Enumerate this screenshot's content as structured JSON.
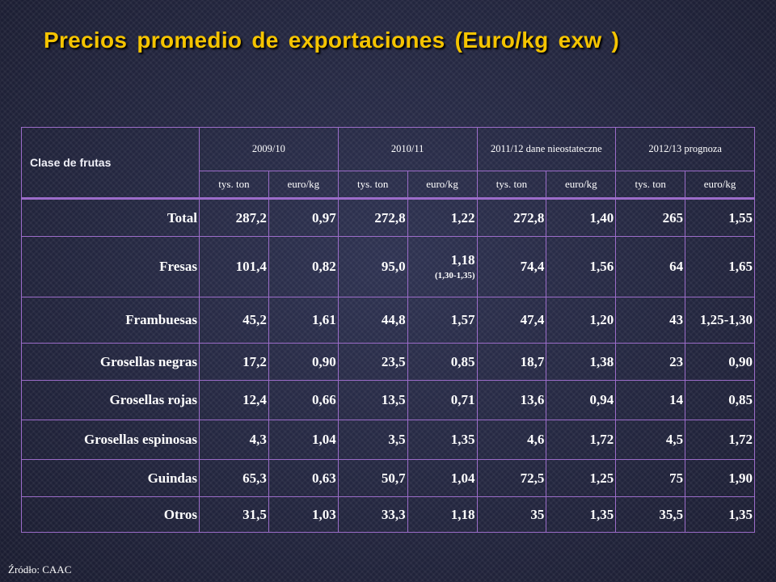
{
  "title": "Precios promedio de exportaciones (Euro/kg exw )",
  "header": {
    "class_label": "Clase de frutas",
    "years": [
      "2009/10",
      "2010/11",
      "2011/12 dane nieostateczne",
      "2012/13 prognoza"
    ],
    "sub": [
      "tys. ton",
      "euro/kg",
      "tys. ton",
      "euro/kg",
      "tys. ton",
      "euro/kg",
      "tys. ton",
      "euro/kg"
    ]
  },
  "rows": [
    {
      "label": "Total",
      "color": "#f5e400",
      "v": [
        "287,2",
        "0,97",
        "272,8",
        "1,22",
        "272,8",
        "1,40",
        "265",
        "1,55"
      ]
    },
    {
      "label": "Fresas",
      "color": "#ff2020",
      "v": [
        "101,4",
        "0,82",
        "95,0",
        "1,18",
        "74,4",
        "1,56",
        "64",
        "1,65"
      ],
      "note_2010_euro": "(1,30-1,35)"
    },
    {
      "label": "Frambuesas",
      "color": "#ff00d0",
      "v": [
        "45,2",
        "1,61",
        "44,8",
        "1,57",
        "47,4",
        "1,20",
        "43",
        "1,25-1,30"
      ]
    },
    {
      "label": "Grosellas negras",
      "color": "#3ec6f0",
      "v": [
        "17,2",
        "0,90",
        "23,5",
        "0,85",
        "18,7",
        "1,38",
        "23",
        "0,90"
      ]
    },
    {
      "label": "Grosellas rojas",
      "color": "#ff78b4",
      "v": [
        "12,4",
        "0,66",
        "13,5",
        "0,71",
        "13,6",
        "0,94",
        "14",
        "0,85"
      ]
    },
    {
      "label": "Grosellas espinosas",
      "color": "#3aa8f8",
      "v": [
        "4,3",
        "1,04",
        "3,5",
        "1,35",
        "4,6",
        "1,72",
        "4,5",
        "1,72"
      ]
    },
    {
      "label": "Guindas",
      "color": "#22cc10",
      "v": [
        "65,3",
        "0,63",
        "50,7",
        "1,04",
        "72,5",
        "1,25",
        "75",
        "1,90"
      ]
    },
    {
      "label": "Otros",
      "color": "#ffffff",
      "v": [
        "31,5",
        "1,03",
        "33,3",
        "1,18",
        "35",
        "1,35",
        "35,5",
        "1,35"
      ]
    }
  ],
  "source": "Źródło: CAAC",
  "colors": {
    "title": "#f5c400",
    "border": "#9b6cc9"
  }
}
